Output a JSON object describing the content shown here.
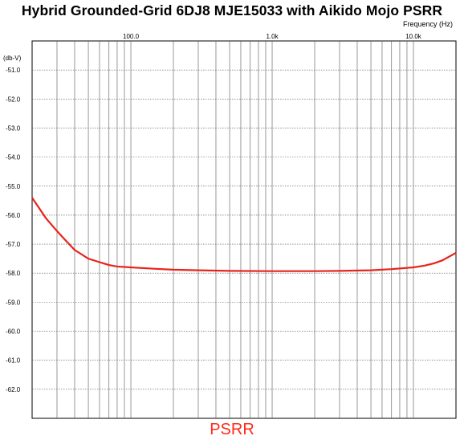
{
  "chart_data": {
    "type": "line",
    "title": "Hybrid Grounded-Grid 6DJ8 MJE15033 with Aikido Mojo PSRR",
    "xlabel": "Frequency   (Hz)",
    "ylabel": "(db-V)",
    "xscale": "log",
    "xlim": [
      20,
      20000
    ],
    "ylim": [
      -63,
      -50
    ],
    "grid": true,
    "x_tick_labels": [
      {
        "value": 100,
        "label": "100.0"
      },
      {
        "value": 1000,
        "label": "1.0k"
      },
      {
        "value": 10000,
        "label": "10.0k"
      }
    ],
    "y_tick_labels": [
      "-51.0",
      "-52.0",
      "-53.0",
      "-54.0",
      "-55.0",
      "-56.0",
      "-57.0",
      "-58.0",
      "-59.0",
      "-60.0",
      "-61.0",
      "-62.0"
    ],
    "series": [
      {
        "name": "PSRR",
        "color": "#e8231a",
        "x": [
          20,
          25,
          30,
          35,
          40,
          50,
          60,
          70,
          80,
          100,
          150,
          200,
          300,
          500,
          1000,
          2000,
          3000,
          5000,
          7000,
          10000,
          12000,
          14000,
          16000,
          20000
        ],
        "y": [
          -55.4,
          -56.1,
          -56.55,
          -56.9,
          -57.2,
          -57.5,
          -57.62,
          -57.72,
          -57.77,
          -57.8,
          -57.85,
          -57.88,
          -57.9,
          -57.92,
          -57.93,
          -57.93,
          -57.92,
          -57.9,
          -57.86,
          -57.8,
          -57.74,
          -57.66,
          -57.56,
          -57.3
        ]
      }
    ]
  }
}
